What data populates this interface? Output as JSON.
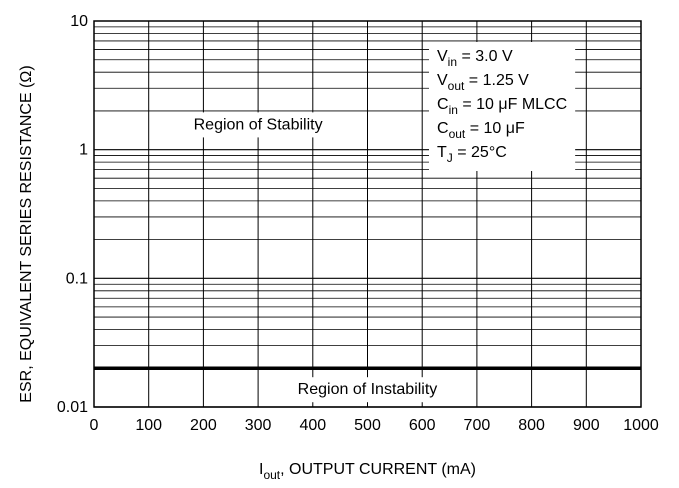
{
  "chart_data": {
    "type": "line",
    "title": "",
    "xlabel": {
      "main": "I",
      "sub": "out",
      "rest": ", OUTPUT CURRENT (mA)"
    },
    "ylabel": "ESR, EQUIVALENT SERIES RESISTANCE (Ω)",
    "xlim": [
      0,
      1000
    ],
    "x_ticks": [
      0,
      100,
      200,
      300,
      400,
      500,
      600,
      700,
      800,
      900,
      1000
    ],
    "ylim": [
      0.01,
      10
    ],
    "y_scale": "log",
    "y_ticks": [
      {
        "value": 0.01,
        "label": "0.01"
      },
      {
        "value": 0.1,
        "label": "0.1"
      },
      {
        "value": 1,
        "label": "1"
      },
      {
        "value": 10,
        "label": "10"
      }
    ],
    "grid": true,
    "series": [
      {
        "x": [
          0,
          1000
        ],
        "y": [
          0.02,
          0.02
        ],
        "color": "#000000"
      }
    ],
    "regions": [
      {
        "label": "Region of Stability",
        "x": 300,
        "y": 1.6
      },
      {
        "label": "Region of Instability",
        "x": 500,
        "y": 0.014
      }
    ],
    "conditions": [
      {
        "main": "V",
        "sub": "in",
        "rest": " = 3.0 V"
      },
      {
        "main": "V",
        "sub": "out",
        "rest": " = 1.25 V"
      },
      {
        "main": "C",
        "sub": "in",
        "rest": " = 10 μF MLCC"
      },
      {
        "main": "C",
        "sub": "out",
        "rest": " = 10 μF"
      },
      {
        "main": "T",
        "sub": "J",
        "rest": " = 25°C"
      }
    ]
  }
}
